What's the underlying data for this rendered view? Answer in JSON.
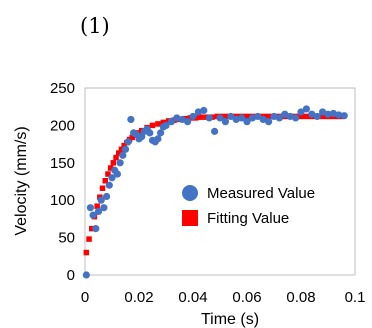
{
  "panel_label": "(1)",
  "chart_data": {
    "type": "scatter",
    "title": "",
    "xlabel": "Time (s)",
    "ylabel": "Velocity (mm/s)",
    "xlim": [
      0,
      0.1
    ],
    "ylim": [
      0,
      250
    ],
    "xticks": [
      0,
      0.02,
      0.04,
      0.06,
      0.08,
      0.1
    ],
    "xtick_labels": [
      "0",
      "0.02",
      "0.04",
      "0.06",
      "0.08",
      "0.1"
    ],
    "yticks": [
      0,
      50,
      100,
      150,
      200,
      250
    ],
    "ytick_labels": [
      "0",
      "50",
      "100",
      "150",
      "200",
      "250"
    ],
    "grid": false,
    "legend_position": "center-right",
    "series": [
      {
        "name": "Measured Value",
        "marker": "circle",
        "color": "#4472C4",
        "x": [
          0.0005,
          0.002,
          0.003,
          0.004,
          0.005,
          0.006,
          0.007,
          0.008,
          0.009,
          0.01,
          0.011,
          0.012,
          0.013,
          0.014,
          0.015,
          0.016,
          0.017,
          0.018,
          0.019,
          0.02,
          0.021,
          0.022,
          0.023,
          0.024,
          0.025,
          0.026,
          0.027,
          0.028,
          0.029,
          0.03,
          0.032,
          0.034,
          0.036,
          0.038,
          0.04,
          0.042,
          0.044,
          0.046,
          0.048,
          0.05,
          0.052,
          0.054,
          0.056,
          0.058,
          0.06,
          0.062,
          0.064,
          0.066,
          0.068,
          0.07,
          0.072,
          0.074,
          0.076,
          0.078,
          0.08,
          0.082,
          0.084,
          0.086,
          0.088,
          0.09,
          0.092,
          0.094,
          0.096
        ],
        "y": [
          0,
          90,
          80,
          62,
          85,
          100,
          90,
          105,
          120,
          130,
          140,
          135,
          150,
          160,
          168,
          178,
          208,
          190,
          188,
          182,
          185,
          192,
          195,
          190,
          180,
          178,
          182,
          190,
          198,
          200,
          205,
          210,
          208,
          205,
          212,
          218,
          220,
          210,
          192,
          210,
          205,
          212,
          208,
          210,
          205,
          210,
          212,
          208,
          205,
          212,
          210,
          215,
          212,
          210,
          218,
          222,
          215,
          212,
          218,
          215,
          216,
          214,
          213
        ]
      },
      {
        "name": "Fitting Value",
        "marker": "square",
        "color": "#FF0000",
        "x": [
          0.0005,
          0.0015,
          0.0025,
          0.0035,
          0.0045,
          0.0055,
          0.0065,
          0.0075,
          0.0085,
          0.0095,
          0.0105,
          0.0115,
          0.0125,
          0.0135,
          0.0145,
          0.0155,
          0.0165,
          0.0175,
          0.0185,
          0.0195,
          0.021,
          0.023,
          0.025,
          0.027,
          0.029,
          0.031,
          0.033,
          0.035,
          0.037,
          0.039,
          0.041,
          0.043,
          0.045,
          0.047,
          0.049,
          0.051,
          0.053,
          0.055,
          0.057,
          0.059,
          0.061,
          0.063,
          0.065,
          0.067,
          0.069,
          0.071,
          0.073,
          0.075,
          0.077,
          0.079,
          0.081,
          0.083,
          0.085,
          0.087,
          0.089,
          0.091,
          0.093,
          0.095
        ],
        "y": [
          30,
          48,
          62,
          78,
          92,
          104,
          116,
          126,
          135,
          143,
          150,
          157,
          163,
          168,
          173,
          177,
          181,
          184,
          187,
          190,
          193,
          197,
          200,
          202,
          204,
          206,
          207,
          208,
          209,
          210,
          210,
          211,
          211,
          211,
          212,
          212,
          212,
          212,
          212,
          212,
          212,
          212,
          212,
          212,
          212,
          212,
          212,
          212,
          212,
          212,
          212,
          212,
          212,
          212,
          212,
          212,
          212,
          212
        ]
      }
    ]
  }
}
